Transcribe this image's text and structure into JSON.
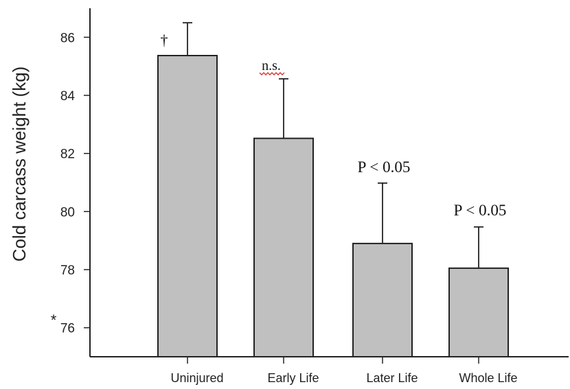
{
  "chart_data": {
    "type": "bar",
    "categories": [
      "Uninjured",
      "Early Life",
      "Later Life",
      "Whole Life"
    ],
    "values": [
      85.37,
      82.52,
      78.9,
      78.05
    ],
    "error_upper": [
      86.5,
      84.57,
      80.98,
      79.47
    ],
    "annotations": [
      "†",
      "n.s.",
      "P < 0.05",
      "P < 0.05"
    ],
    "ylabel": "Cold carcass weight (kg)",
    "xlabel": "",
    "yticks": [
      76,
      78,
      80,
      82,
      84,
      86
    ],
    "ylim": [
      75.0,
      87.0
    ],
    "axis_marker": "*",
    "bar_color": "#c0c0c0",
    "grid": false
  }
}
